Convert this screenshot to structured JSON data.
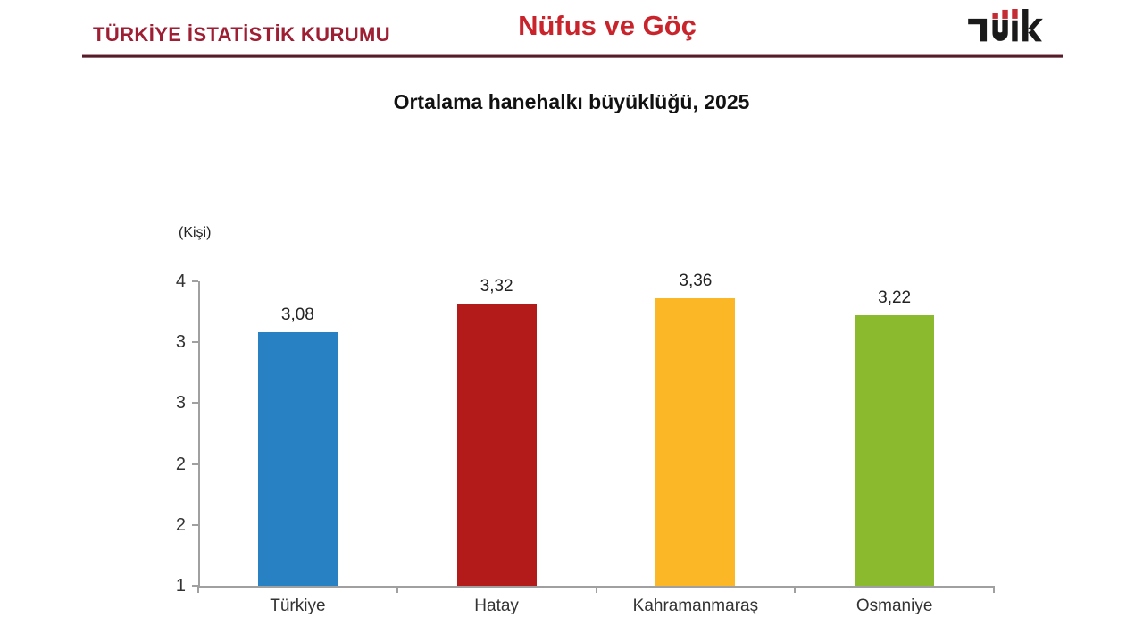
{
  "header": {
    "org_name": "TÜRKİYE İSTATİSTİK KURUMU",
    "page_title": "Nüfus ve Göç",
    "logo_alt": "TÜİK"
  },
  "chart_data": {
    "type": "bar",
    "title": "Ortalama hanehalkı büyüklüğü, 2025",
    "unit_label": "(Kişi)",
    "categories": [
      "Türkiye",
      "Hatay",
      "Kahramanmaraş",
      "Osmaniye"
    ],
    "values": [
      3.08,
      3.32,
      3.36,
      3.22
    ],
    "value_labels": [
      "3,08",
      "3,32",
      "3,36",
      "3,22"
    ],
    "bar_colors": [
      "#2781C3",
      "#B31B1B",
      "#FBB725",
      "#8CBA2F"
    ],
    "ylim": [
      1,
      4
    ],
    "y_tick_labels": [
      "4",
      "3",
      "3",
      "2",
      "2",
      "1"
    ],
    "xlabel": "",
    "ylabel": "(Kişi)",
    "grid": false,
    "legend": "none"
  },
  "colors": {
    "org_name": "#9E1E33",
    "page_title": "#C9242B",
    "axis": "#A0A0A0",
    "logo_black": "#1A1A1A",
    "logo_red": "#C42B32"
  }
}
